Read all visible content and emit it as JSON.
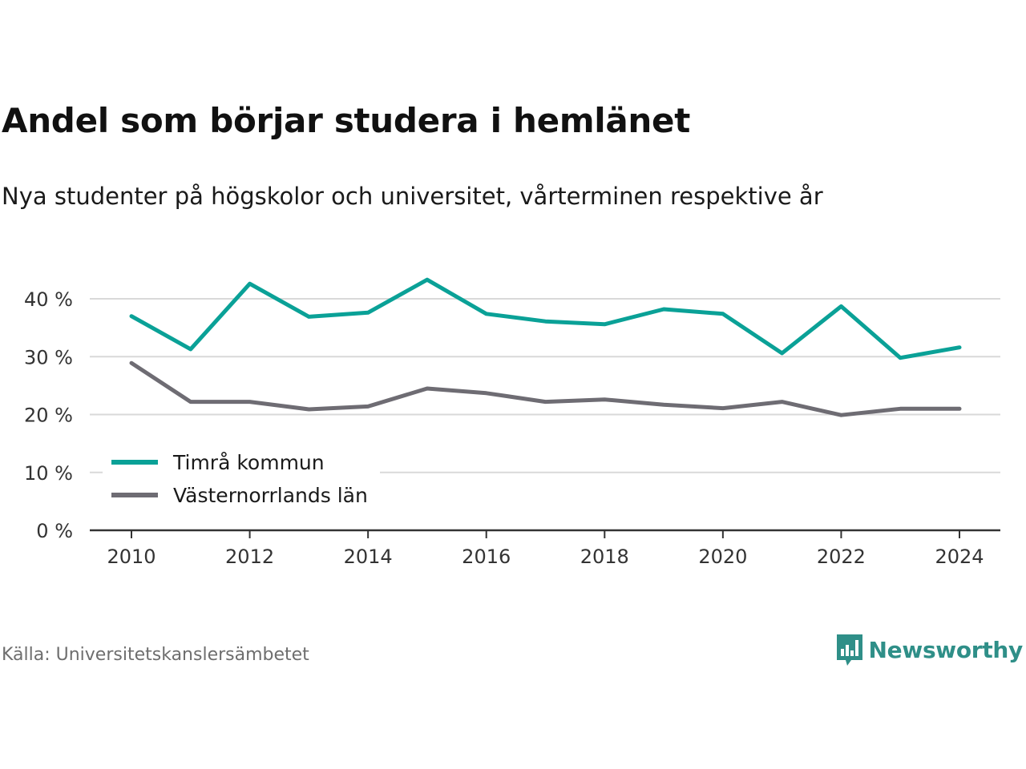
{
  "header": {
    "title": "Andel som börjar studera i hemlänet",
    "subtitle": "Nya studenter på högskolor och universitet, vårterminen respektive år"
  },
  "footer": {
    "source": "Källa: Universitetskanslersämbetet",
    "brand": "Newsworthy",
    "brand_icon": "bar-chart-speech-bubble-icon"
  },
  "colors": {
    "series_1": "#0aa197",
    "series_2": "#6e6c73",
    "grid": "#d9d9d9",
    "axis": "#333333",
    "brand": "#2f8f88"
  },
  "chart_data": {
    "type": "line",
    "x": [
      2010,
      2011,
      2012,
      2013,
      2014,
      2015,
      2016,
      2017,
      2018,
      2019,
      2020,
      2021,
      2022,
      2023,
      2024
    ],
    "series": [
      {
        "name": "Timrå kommun",
        "values": [
          37,
          31.3,
          42.6,
          36.9,
          37.6,
          43.3,
          37.4,
          36.1,
          35.6,
          38.2,
          37.4,
          30.6,
          38.7,
          29.8,
          31.6
        ]
      },
      {
        "name": "Västernorrlands län",
        "values": [
          28.9,
          22.2,
          22.2,
          20.9,
          21.4,
          24.5,
          23.7,
          22.2,
          22.6,
          21.7,
          21.1,
          22.2,
          19.9,
          21,
          21
        ]
      }
    ],
    "ylim": [
      0,
      40
    ],
    "yticks": [
      0,
      10,
      20,
      30,
      40
    ],
    "ytick_labels": [
      "0 %",
      "10 %",
      "20 %",
      "30 %",
      "40 %"
    ],
    "xticks": [
      2010,
      2012,
      2014,
      2016,
      2018,
      2020,
      2022,
      2024
    ],
    "xtick_labels": [
      "2010",
      "2012",
      "2014",
      "2016",
      "2018",
      "2020",
      "2022",
      "2024"
    ],
    "grid": true,
    "legend": "bottom-left"
  }
}
